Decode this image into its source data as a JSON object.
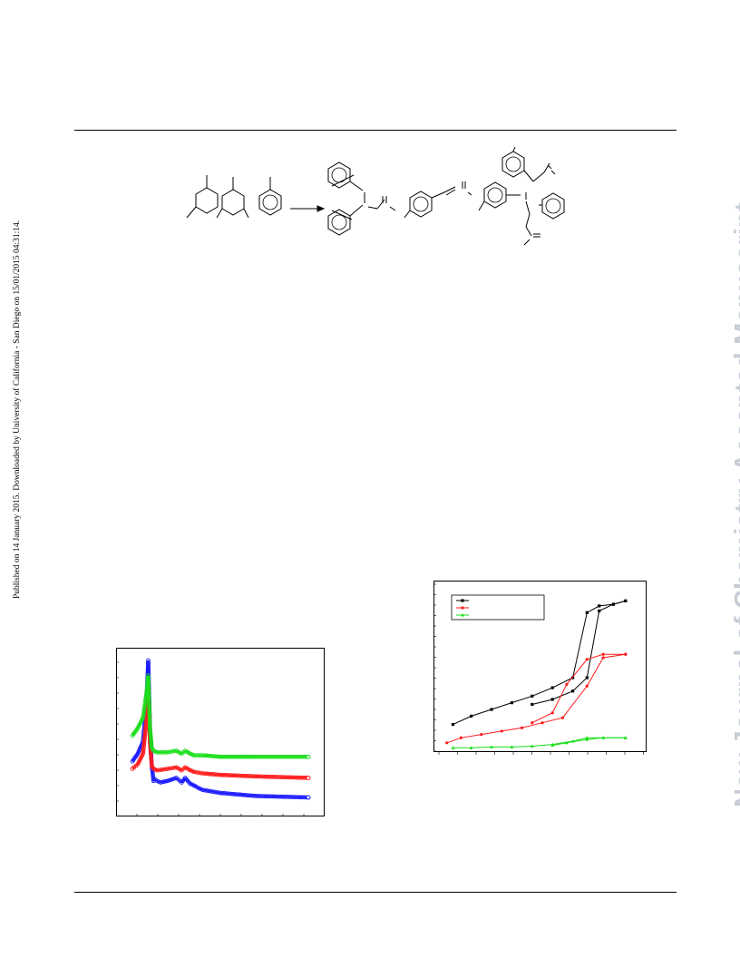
{
  "side_note": "Published on 14 January 2015. Downloaded by University of California - San Diego on 15/01/2015 04:31:14.",
  "watermark": "New Journal of Chemistry Accepted Manuscript",
  "scheme": {
    "description_icons": [
      "benzene-ring",
      "reaction-arrow"
    ]
  },
  "xrd_chart": {
    "chart_data": {
      "type": "line",
      "title": "",
      "xlabel": "",
      "ylabel": "",
      "grid": false,
      "legend": "none",
      "series": [
        {
          "color": "#1a1aff",
          "marker": "circle-open",
          "x": [
            0,
            3,
            6,
            8,
            9,
            10,
            11,
            12,
            13,
            14,
            16,
            20,
            25,
            28,
            30,
            33,
            35,
            38,
            40,
            50,
            70,
            100
          ],
          "y": [
            0.33,
            0.38,
            0.46,
            0.72,
            1.0,
            0.55,
            0.3,
            0.2,
            0.21,
            0.2,
            0.19,
            0.2,
            0.22,
            0.19,
            0.22,
            0.18,
            0.17,
            0.15,
            0.14,
            0.12,
            0.1,
            0.09
          ]
        },
        {
          "color": "#ff1a1a",
          "marker": "circle-open",
          "x": [
            0,
            3,
            6,
            8,
            9,
            10,
            11,
            12,
            14,
            20,
            25,
            28,
            30,
            33,
            35,
            40,
            50,
            70,
            100
          ],
          "y": [
            0.28,
            0.31,
            0.38,
            0.6,
            0.82,
            0.45,
            0.3,
            0.28,
            0.27,
            0.28,
            0.29,
            0.27,
            0.29,
            0.27,
            0.26,
            0.25,
            0.24,
            0.23,
            0.22
          ]
        },
        {
          "color": "#1adf1a",
          "marker": "circle-open",
          "x": [
            0,
            3,
            6,
            8,
            9,
            10,
            11,
            12,
            14,
            20,
            25,
            28,
            30,
            33,
            35,
            40,
            50,
            70,
            100
          ],
          "y": [
            0.5,
            0.55,
            0.62,
            0.78,
            0.9,
            0.55,
            0.42,
            0.4,
            0.39,
            0.39,
            0.4,
            0.38,
            0.4,
            0.38,
            0.37,
            0.37,
            0.36,
            0.36,
            0.36
          ]
        }
      ]
    }
  },
  "iso_chart": {
    "chart_data": {
      "type": "line",
      "title": "",
      "xlabel": "",
      "ylabel": "",
      "grid": false,
      "legend": "top-left",
      "xlim": [
        0,
        1
      ],
      "ylim": [
        0,
        1
      ],
      "series": [
        {
          "color": "#000000",
          "marker": "square",
          "adsorption": {
            "x": [
              0.06,
              0.15,
              0.25,
              0.35,
              0.45,
              0.55,
              0.65,
              0.72,
              0.78,
              0.85,
              0.91
            ],
            "y": [
              0.16,
              0.21,
              0.25,
              0.29,
              0.33,
              0.38,
              0.44,
              0.83,
              0.87,
              0.88,
              0.9
            ]
          },
          "desorption": {
            "x": [
              0.91,
              0.85,
              0.78,
              0.72,
              0.65,
              0.55,
              0.45
            ],
            "y": [
              0.9,
              0.88,
              0.84,
              0.44,
              0.36,
              0.31,
              0.28
            ]
          }
        },
        {
          "color": "#ff1a1a",
          "marker": "circle",
          "adsorption": {
            "x": [
              0.03,
              0.1,
              0.2,
              0.3,
              0.4,
              0.5,
              0.6,
              0.72,
              0.8,
              0.91
            ],
            "y": [
              0.05,
              0.08,
              0.1,
              0.12,
              0.14,
              0.17,
              0.2,
              0.39,
              0.56,
              0.58
            ]
          },
          "desorption": {
            "x": [
              0.91,
              0.8,
              0.72,
              0.62,
              0.55,
              0.45
            ],
            "y": [
              0.58,
              0.58,
              0.55,
              0.4,
              0.23,
              0.17
            ]
          }
        },
        {
          "color": "#1adf1a",
          "marker": "triangle",
          "adsorption": {
            "x": [
              0.06,
              0.15,
              0.25,
              0.35,
              0.45,
              0.55,
              0.65,
              0.72,
              0.8,
              0.91
            ],
            "y": [
              0.02,
              0.02,
              0.025,
              0.025,
              0.03,
              0.04,
              0.06,
              0.08,
              0.08,
              0.08
            ]
          },
          "desorption": {
            "x": [
              0.91,
              0.8,
              0.72,
              0.62,
              0.55
            ],
            "y": [
              0.08,
              0.08,
              0.07,
              0.05,
              0.035
            ]
          }
        }
      ]
    }
  }
}
